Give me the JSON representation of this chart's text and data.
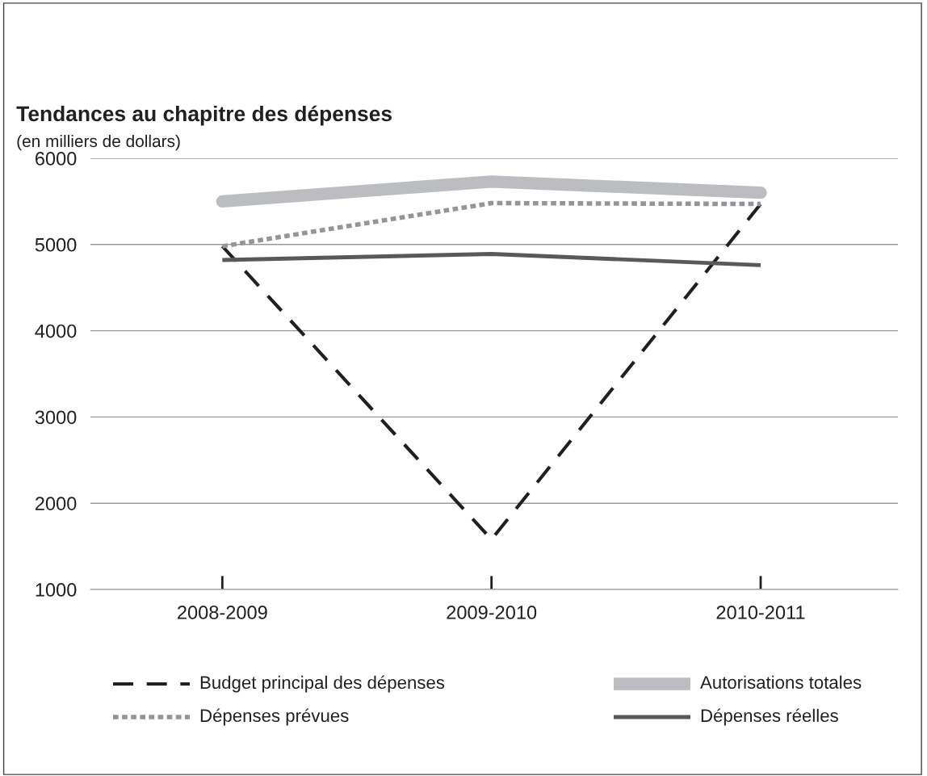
{
  "chart_data": {
    "type": "line",
    "title": "Tendances au chapitre des dépenses",
    "subtitle": "(en milliers de dollars)",
    "categories": [
      "2008-2009",
      "2009-2010",
      "2010-2011"
    ],
    "ylim": [
      1000,
      6000
    ],
    "yticks": [
      1000,
      2000,
      3000,
      4000,
      5000,
      6000
    ],
    "grid": "y",
    "legend": "bottom",
    "marker": "none",
    "series": [
      {
        "name": "Budget principal des dépenses",
        "color": "#231f20",
        "values": [
          4980,
          1580,
          5470
        ],
        "line_style": "dashed"
      },
      {
        "name": "Autorisations totales",
        "color": "#bcbdc0",
        "values": [
          5500,
          5730,
          5600
        ],
        "line_style": "solid"
      },
      {
        "name": "Dépenses prévues",
        "color": "#939598",
        "values": [
          4980,
          5480,
          5470
        ],
        "line_style": "dotted"
      },
      {
        "name": "Dépenses réelles",
        "color": "#58595b",
        "values": [
          4820,
          4890,
          4760
        ],
        "line_style": "solid"
      }
    ]
  }
}
